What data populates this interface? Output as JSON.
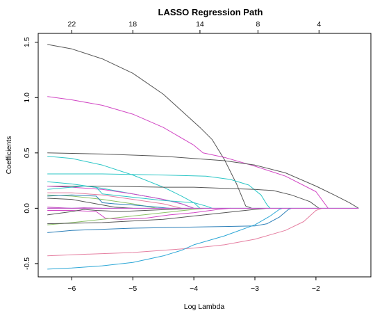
{
  "chart_data": {
    "type": "line",
    "title": "LASSO Regression Path",
    "xlabel": "Log Lambda",
    "ylabel": "Coefficients",
    "xlim": [
      -6.55,
      -1.1
    ],
    "ylim": [
      -0.62,
      1.58
    ],
    "x_ticks": [
      -6,
      -5,
      -4,
      -3,
      -2
    ],
    "x_tick_labels": [
      "−6",
      "−5",
      "−4",
      "−3",
      "−2"
    ],
    "y_ticks": [
      -0.5,
      0.0,
      0.5,
      1.0,
      1.5
    ],
    "y_tick_labels": [
      "-0.5",
      "0.0",
      "0.5",
      "1.0",
      "1.5"
    ],
    "top_ticks": [
      {
        "x": -6.0,
        "label": "22"
      },
      {
        "x": -5.0,
        "label": "18"
      },
      {
        "x": -3.9,
        "label": "14"
      },
      {
        "x": -2.95,
        "label": "8"
      },
      {
        "x": -1.95,
        "label": "4"
      }
    ],
    "grid": false,
    "series": [
      {
        "color": "#555555",
        "points": [
          [
            -6.4,
            1.48
          ],
          [
            -6.0,
            1.44
          ],
          [
            -5.5,
            1.35
          ],
          [
            -5.0,
            1.22
          ],
          [
            -4.5,
            1.03
          ],
          [
            -4.0,
            0.78
          ],
          [
            -3.9,
            0.73
          ],
          [
            -3.7,
            0.62
          ],
          [
            -3.5,
            0.44
          ],
          [
            -3.3,
            0.22
          ],
          [
            -3.15,
            0.02
          ],
          [
            -3.05,
            0.0
          ]
        ]
      },
      {
        "color": "#d147c4",
        "points": [
          [
            -6.4,
            1.01
          ],
          [
            -6.0,
            0.98
          ],
          [
            -5.5,
            0.93
          ],
          [
            -5.0,
            0.85
          ],
          [
            -4.5,
            0.73
          ],
          [
            -4.0,
            0.57
          ],
          [
            -3.85,
            0.5
          ],
          [
            -3.5,
            0.46
          ],
          [
            -3.0,
            0.38
          ],
          [
            -2.5,
            0.29
          ],
          [
            -2.0,
            0.15
          ],
          [
            -1.8,
            0.0
          ]
        ]
      },
      {
        "color": "#555555",
        "points": [
          [
            -6.4,
            0.5
          ],
          [
            -5.5,
            0.49
          ],
          [
            -4.5,
            0.47
          ],
          [
            -3.5,
            0.43
          ],
          [
            -3.0,
            0.39
          ],
          [
            -2.5,
            0.32
          ],
          [
            -2.0,
            0.2
          ],
          [
            -1.7,
            0.12
          ],
          [
            -1.45,
            0.05
          ],
          [
            -1.3,
            0.0
          ]
        ]
      },
      {
        "color": "#2bc6c6",
        "points": [
          [
            -6.4,
            0.47
          ],
          [
            -6.0,
            0.45
          ],
          [
            -5.5,
            0.39
          ],
          [
            -5.0,
            0.3
          ],
          [
            -4.5,
            0.19
          ],
          [
            -4.2,
            0.11
          ],
          [
            -4.0,
            0.05
          ],
          [
            -3.9,
            0.0
          ]
        ]
      },
      {
        "color": "#2bc6c6",
        "points": [
          [
            -6.4,
            0.31
          ],
          [
            -5.5,
            0.31
          ],
          [
            -4.5,
            0.3
          ],
          [
            -3.8,
            0.29
          ],
          [
            -3.4,
            0.26
          ],
          [
            -3.1,
            0.21
          ],
          [
            -2.9,
            0.12
          ],
          [
            -2.8,
            0.03
          ],
          [
            -2.75,
            0.0
          ]
        ]
      },
      {
        "color": "#2bc6c6",
        "points": [
          [
            -6.4,
            0.24
          ],
          [
            -6.0,
            0.22
          ],
          [
            -5.5,
            0.18
          ],
          [
            -5.0,
            0.13
          ],
          [
            -4.5,
            0.08
          ],
          [
            -4.2,
            0.04
          ],
          [
            -4.0,
            0.0
          ]
        ]
      },
      {
        "color": "#555555",
        "points": [
          [
            -6.4,
            0.2
          ],
          [
            -5.5,
            0.2
          ],
          [
            -4.5,
            0.19
          ],
          [
            -4.0,
            0.19
          ],
          [
            -3.5,
            0.18
          ],
          [
            -3.0,
            0.17
          ],
          [
            -2.7,
            0.16
          ],
          [
            -2.4,
            0.12
          ],
          [
            -2.1,
            0.06
          ],
          [
            -1.95,
            0.0
          ]
        ]
      },
      {
        "color": "#d147c4",
        "points": [
          [
            -6.4,
            0.2
          ],
          [
            -6.0,
            0.19
          ],
          [
            -5.5,
            0.17
          ],
          [
            -5.0,
            0.13
          ],
          [
            -4.5,
            0.08
          ],
          [
            -4.2,
            0.04
          ],
          [
            -4.0,
            0.0
          ]
        ]
      },
      {
        "color": "#2bc6c6",
        "points": [
          [
            -6.4,
            0.17
          ],
          [
            -5.8,
            0.2
          ],
          [
            -5.6,
            0.19
          ],
          [
            -5.5,
            0.13
          ],
          [
            -5.0,
            0.1
          ],
          [
            -4.5,
            0.07
          ],
          [
            -4.0,
            0.05
          ],
          [
            -3.8,
            0.02
          ],
          [
            -3.7,
            0.0
          ]
        ]
      },
      {
        "color": "#e57fa1",
        "points": [
          [
            -6.4,
            0.14
          ],
          [
            -6.0,
            0.14
          ],
          [
            -5.5,
            0.12
          ],
          [
            -5.0,
            0.08
          ],
          [
            -4.5,
            0.04
          ],
          [
            -4.2,
            0.0
          ]
        ]
      },
      {
        "color": "#8cc266",
        "points": [
          [
            -6.4,
            0.12
          ],
          [
            -6.0,
            0.11
          ],
          [
            -5.5,
            0.08
          ],
          [
            -5.0,
            0.04
          ],
          [
            -4.6,
            0.0
          ]
        ]
      },
      {
        "color": "#2c7fb8",
        "points": [
          [
            -6.4,
            0.11
          ],
          [
            -6.0,
            0.12
          ],
          [
            -5.6,
            0.11
          ],
          [
            -5.5,
            0.05
          ],
          [
            -5.3,
            0.04
          ],
          [
            -5.0,
            0.03
          ],
          [
            -4.6,
            0.01
          ],
          [
            -4.4,
            0.0
          ]
        ]
      },
      {
        "color": "#555555",
        "points": [
          [
            -6.4,
            0.09
          ],
          [
            -6.0,
            0.08
          ],
          [
            -5.6,
            0.04
          ],
          [
            -5.3,
            0.01
          ],
          [
            -5.0,
            0.0
          ]
        ]
      },
      {
        "color": "#d147c4",
        "points": [
          [
            -6.4,
            0.01
          ],
          [
            -6.0,
            0.0
          ],
          [
            -5.8,
            0.005
          ],
          [
            -5.5,
            0.0
          ]
        ]
      },
      {
        "color": "#d147c4",
        "points": [
          [
            -6.4,
            -0.02
          ],
          [
            -6.0,
            -0.02
          ],
          [
            -5.6,
            -0.03
          ],
          [
            -5.45,
            -0.09
          ],
          [
            -5.2,
            -0.1
          ],
          [
            -4.8,
            -0.09
          ],
          [
            -4.4,
            -0.06
          ],
          [
            -4.0,
            -0.04
          ],
          [
            -3.6,
            -0.01
          ],
          [
            -3.4,
            0.0
          ]
        ]
      },
      {
        "color": "#555555",
        "points": [
          [
            -6.4,
            -0.06
          ],
          [
            -6.0,
            -0.03
          ],
          [
            -5.8,
            -0.01
          ],
          [
            -5.6,
            -0.02
          ],
          [
            -5.2,
            -0.03
          ],
          [
            -4.8,
            -0.02
          ],
          [
            -4.4,
            -0.01
          ],
          [
            -4.0,
            0.0
          ]
        ]
      },
      {
        "color": "#8cc266",
        "points": [
          [
            -6.4,
            -0.15
          ],
          [
            -6.0,
            -0.13
          ],
          [
            -5.5,
            -0.1
          ],
          [
            -5.0,
            -0.07
          ],
          [
            -4.5,
            -0.04
          ],
          [
            -4.0,
            -0.01
          ],
          [
            -3.8,
            0.0
          ]
        ]
      },
      {
        "color": "#555555",
        "points": [
          [
            -6.4,
            -0.14
          ],
          [
            -5.5,
            -0.13
          ],
          [
            -4.5,
            -0.1
          ],
          [
            -4.0,
            -0.07
          ],
          [
            -3.5,
            -0.04
          ],
          [
            -3.0,
            -0.01
          ],
          [
            -2.8,
            0.0
          ]
        ]
      },
      {
        "color": "#2c7fb8",
        "points": [
          [
            -6.4,
            -0.22
          ],
          [
            -6.0,
            -0.2
          ],
          [
            -5.5,
            -0.19
          ],
          [
            -5.0,
            -0.18
          ],
          [
            -4.5,
            -0.175
          ],
          [
            -4.0,
            -0.17
          ],
          [
            -3.5,
            -0.165
          ],
          [
            -3.0,
            -0.16
          ],
          [
            -2.8,
            -0.14
          ],
          [
            -2.6,
            -0.08
          ],
          [
            -2.45,
            -0.01
          ],
          [
            -2.4,
            0.0
          ]
        ]
      },
      {
        "color": "#e57fa1",
        "points": [
          [
            -6.4,
            -0.43
          ],
          [
            -6.0,
            -0.42
          ],
          [
            -5.5,
            -0.41
          ],
          [
            -5.0,
            -0.4
          ],
          [
            -4.5,
            -0.38
          ],
          [
            -4.0,
            -0.36
          ],
          [
            -3.5,
            -0.33
          ],
          [
            -3.0,
            -0.28
          ],
          [
            -2.5,
            -0.2
          ],
          [
            -2.2,
            -0.12
          ],
          [
            -2.0,
            -0.02
          ],
          [
            -1.9,
            0.0
          ]
        ]
      },
      {
        "color": "#2ba6d6",
        "points": [
          [
            -6.4,
            -0.55
          ],
          [
            -6.0,
            -0.54
          ],
          [
            -5.5,
            -0.52
          ],
          [
            -5.0,
            -0.49
          ],
          [
            -4.5,
            -0.43
          ],
          [
            -4.2,
            -0.38
          ],
          [
            -4.0,
            -0.33
          ],
          [
            -3.5,
            -0.25
          ],
          [
            -3.0,
            -0.15
          ],
          [
            -2.75,
            -0.07
          ],
          [
            -2.6,
            -0.01
          ],
          [
            -2.55,
            0.0
          ]
        ]
      },
      {
        "color": "#2bc6c6",
        "points": [
          [
            -6.4,
            0.0
          ],
          [
            -5.5,
            0.0
          ],
          [
            -4.0,
            0.0
          ],
          [
            -3.0,
            0.0
          ],
          [
            -2.0,
            0.0
          ],
          [
            -1.3,
            0.0
          ]
        ]
      },
      {
        "color": "#d147c4",
        "points": [
          [
            -6.4,
            0.0
          ],
          [
            -5.0,
            0.0
          ],
          [
            -3.5,
            0.0
          ],
          [
            -2.0,
            0.0
          ],
          [
            -1.3,
            0.0
          ]
        ]
      }
    ]
  }
}
